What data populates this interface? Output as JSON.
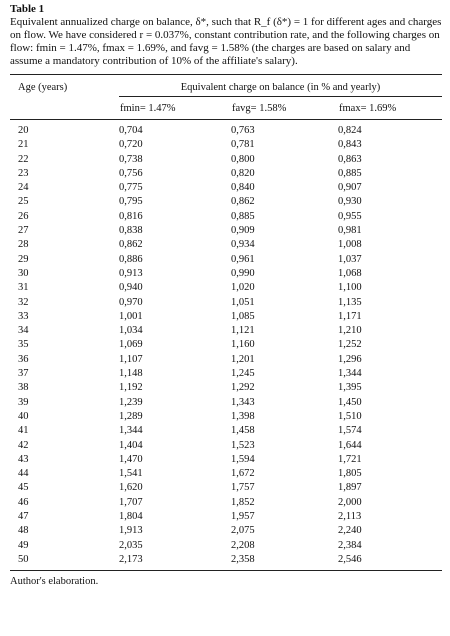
{
  "title": "Table 1",
  "caption": "Equivalent annualized charge on balance, δ*, such that R_f (δ*) = 1 for different ages and charges on flow. We have considered r = 0.037%, constant contribution rate, and the following charges on flow: fmin = 1.47%, fmax = 1.69%, and favg = 1.58% (the charges are based on salary and assume a mandatory contribution of 10% of the affiliate's salary).",
  "table": {
    "header": {
      "age": "Age (years)",
      "group": "Equivalent charge on balance (in % and yearly)",
      "columns": [
        "fmin= 1.47%",
        "favg= 1.58%",
        "fmax= 1.69%"
      ]
    },
    "rows": [
      [
        "20",
        "0,704",
        "0,763",
        "0,824"
      ],
      [
        "21",
        "0,720",
        "0,781",
        "0,843"
      ],
      [
        "22",
        "0,738",
        "0,800",
        "0,863"
      ],
      [
        "23",
        "0,756",
        "0,820",
        "0,885"
      ],
      [
        "24",
        "0,775",
        "0,840",
        "0,907"
      ],
      [
        "25",
        "0,795",
        "0,862",
        "0,930"
      ],
      [
        "26",
        "0,816",
        "0,885",
        "0,955"
      ],
      [
        "27",
        "0,838",
        "0,909",
        "0,981"
      ],
      [
        "28",
        "0,862",
        "0,934",
        "1,008"
      ],
      [
        "29",
        "0,886",
        "0,961",
        "1,037"
      ],
      [
        "30",
        "0,913",
        "0,990",
        "1,068"
      ],
      [
        "31",
        "0,940",
        "1,020",
        "1,100"
      ],
      [
        "32",
        "0,970",
        "1,051",
        "1,135"
      ],
      [
        "33",
        "1,001",
        "1,085",
        "1,171"
      ],
      [
        "34",
        "1,034",
        "1,121",
        "1,210"
      ],
      [
        "35",
        "1,069",
        "1,160",
        "1,252"
      ],
      [
        "36",
        "1,107",
        "1,201",
        "1,296"
      ],
      [
        "37",
        "1,148",
        "1,245",
        "1,344"
      ],
      [
        "38",
        "1,192",
        "1,292",
        "1,395"
      ],
      [
        "39",
        "1,239",
        "1,343",
        "1,450"
      ],
      [
        "40",
        "1,289",
        "1,398",
        "1,510"
      ],
      [
        "41",
        "1,344",
        "1,458",
        "1,574"
      ],
      [
        "42",
        "1,404",
        "1,523",
        "1,644"
      ],
      [
        "43",
        "1,470",
        "1,594",
        "1,721"
      ],
      [
        "44",
        "1,541",
        "1,672",
        "1,805"
      ],
      [
        "45",
        "1,620",
        "1,757",
        "1,897"
      ],
      [
        "46",
        "1,707",
        "1,852",
        "2,000"
      ],
      [
        "47",
        "1,804",
        "1,957",
        "2,113"
      ],
      [
        "48",
        "1,913",
        "2,075",
        "2,240"
      ],
      [
        "49",
        "2,035",
        "2,208",
        "2,384"
      ],
      [
        "50",
        "2,173",
        "2,358",
        "2,546"
      ]
    ]
  },
  "footnote": "Author's elaboration."
}
